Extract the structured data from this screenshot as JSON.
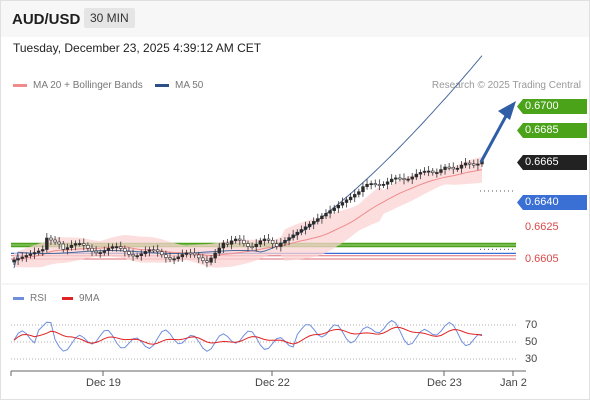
{
  "header": {
    "symbol": "AUD/USD",
    "timeframe": "30 MIN"
  },
  "datetime": "Tuesday, December 23, 2025 4:39:12 AM CET",
  "legend": {
    "ma20_label": "MA 20 + Bollinger Bands",
    "ma50_label": "MA 50",
    "copyright": "Research © 2025 Trading Central"
  },
  "price_levels": [
    {
      "label": "0.6700",
      "value": 0.67,
      "style": "green-tag"
    },
    {
      "label": "0.6685",
      "value": 0.6685,
      "style": "green-tag"
    },
    {
      "label": "0.6665",
      "value": 0.6665,
      "style": "black-tag"
    },
    {
      "label": "0.6640",
      "value": 0.664,
      "style": "blue-tag"
    },
    {
      "label": "0.6625",
      "value": 0.6625,
      "style": "red-text"
    },
    {
      "label": "0.6605",
      "value": 0.6605,
      "style": "red-text"
    }
  ],
  "rsi_panel": {
    "rsi_label": "RSI",
    "ma_label": "9MA",
    "ticks": [
      "70",
      "50",
      "30"
    ]
  },
  "x_axis": {
    "labels": [
      "Dec 19",
      "Dec 22",
      "Dec 23",
      "Jan 2"
    ]
  },
  "colors": {
    "green": "#4aa319",
    "blue": "#3a6fd4",
    "red": "#e06b75",
    "ma50": "#4a6a9a",
    "band": "#fbd3d3",
    "arrow": "#2f5ea6",
    "rsi": "#6f8fdd",
    "rsi_ma": "#e02323"
  }
}
